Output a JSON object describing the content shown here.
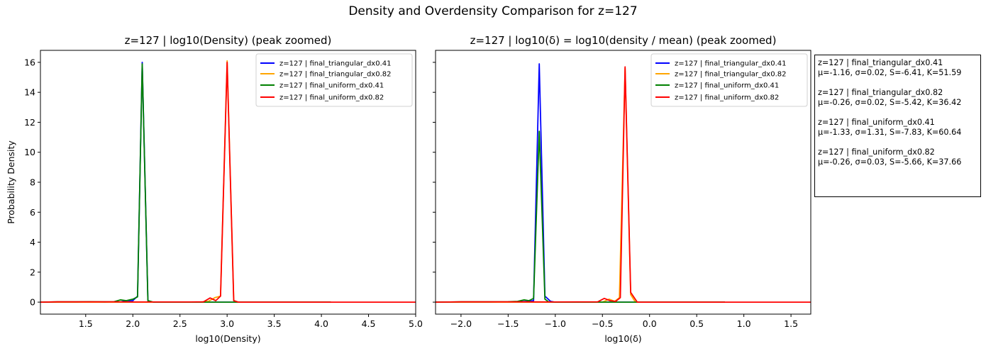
{
  "suptitle": "Density and Overdensity Comparison for z=127",
  "colors": {
    "final_triangular_dx0.41": "#0000ff",
    "final_triangular_dx0.82": "#ffa500",
    "final_uniform_dx0.41": "#008000",
    "final_uniform_dx0.82": "#ff0000"
  },
  "stats": [
    {
      "name": "z=127 | final_triangular_dx0.41",
      "line": "μ=-1.16, σ=0.02, S=-6.41, K=51.59"
    },
    {
      "name": "z=127 | final_triangular_dx0.82",
      "line": "μ=-0.26, σ=0.02, S=-5.42, K=36.42"
    },
    {
      "name": "z=127 | final_uniform_dx0.41",
      "line": "μ=-1.33, σ=1.31, S=-7.83, K=60.64"
    },
    {
      "name": "z=127 | final_uniform_dx0.82",
      "line": "μ=-0.26, σ=0.03, S=-5.66, K=37.66"
    }
  ],
  "chart_data": [
    {
      "type": "line",
      "title": "z=127 | log10(Density) (peak zoomed)",
      "xlabel": "log10(Density)",
      "ylabel": "Probability Density",
      "xlim": [
        1.02,
        5.0
      ],
      "ylim": [
        -0.8,
        16.8
      ],
      "xticks": [
        1.5,
        2.0,
        2.5,
        3.0,
        3.5,
        4.0,
        4.5,
        5.0
      ],
      "xtick_labels": [
        "1.5",
        "2.0",
        "2.5",
        "3.0",
        "3.5",
        "4.0",
        "4.5",
        "5.0"
      ],
      "yticks": [
        0,
        2,
        4,
        6,
        8,
        10,
        12,
        14,
        16
      ],
      "ytick_labels": [
        "0",
        "2",
        "4",
        "6",
        "8",
        "10",
        "12",
        "14",
        "16"
      ],
      "legend_position": "top-right",
      "series": [
        {
          "name": "z=127 | final_triangular_dx0.41",
          "color_key": "final_triangular_dx0.41",
          "x": [
            1.02,
            1.86,
            1.93,
            2.0,
            2.05,
            2.1,
            2.16,
            2.2,
            2.5,
            4.1
          ],
          "y": [
            0,
            0,
            0.1,
            0.1,
            0.4,
            16.0,
            0.1,
            0,
            0,
            0
          ]
        },
        {
          "name": "z=127 | final_triangular_dx0.82",
          "color_key": "final_triangular_dx0.82",
          "x": [
            1.02,
            2.7,
            2.8,
            2.87,
            2.93,
            3.0,
            3.07,
            3.12,
            3.5,
            4.1
          ],
          "y": [
            0,
            0,
            0.05,
            0.3,
            0.4,
            16.1,
            0.1,
            0,
            0,
            0
          ]
        },
        {
          "name": "z=127 | final_uniform_dx0.41",
          "color_key": "final_uniform_dx0.41",
          "x": [
            1.02,
            1.2,
            1.4,
            1.55,
            1.7,
            1.8,
            1.87,
            1.93,
            2.0,
            2.05,
            2.1,
            2.16,
            2.22,
            2.5,
            4.1
          ],
          "y": [
            0,
            0.02,
            0.02,
            0.03,
            0.02,
            0.03,
            0.15,
            0.1,
            0.2,
            0.35,
            15.9,
            0.1,
            0,
            0,
            0
          ]
        },
        {
          "name": "z=127 | final_uniform_dx0.82",
          "color_key": "final_uniform_dx0.82",
          "x": [
            1.02,
            1.2,
            1.5,
            1.8,
            2.0,
            2.6,
            2.75,
            2.82,
            2.88,
            2.93,
            3.0,
            3.07,
            3.12,
            3.5,
            4.1,
            5.0
          ],
          "y": [
            0,
            0.02,
            0.02,
            0.02,
            0.01,
            0.01,
            0.02,
            0.28,
            0.1,
            0.4,
            16.0,
            0.1,
            0,
            0,
            0,
            0
          ]
        }
      ]
    },
    {
      "type": "line",
      "title": "z=127 | log10(δ) = log10(density / mean) (peak zoomed)",
      "xlabel": "log10(δ)",
      "ylabel": "",
      "xlim": [
        -2.27,
        1.71
      ],
      "ylim": [
        -0.8,
        16.8
      ],
      "xticks": [
        -2.0,
        -1.5,
        -1.0,
        -0.5,
        0.0,
        0.5,
        1.0,
        1.5
      ],
      "xtick_labels": [
        "−2.0",
        "−1.5",
        "−1.0",
        "−0.5",
        "0.0",
        "0.5",
        "1.0",
        "1.5"
      ],
      "yticks": [
        0,
        2,
        4,
        6,
        8,
        10,
        12,
        14,
        16
      ],
      "ytick_labels": [
        "",
        "",
        "",
        "",
        "",
        "",
        "",
        "",
        ""
      ],
      "legend_position": "top-right",
      "series": [
        {
          "name": "z=127 | final_triangular_dx0.41",
          "color_key": "final_triangular_dx0.41",
          "x": [
            -2.27,
            -1.5,
            -1.3,
            -1.23,
            -1.17,
            -1.11,
            -1.05,
            -1.0,
            -0.5,
            0.8
          ],
          "y": [
            0,
            0,
            0.05,
            0.1,
            15.9,
            0.4,
            0.05,
            0,
            0,
            0
          ]
        },
        {
          "name": "z=127 | final_triangular_dx0.82",
          "color_key": "final_triangular_dx0.82",
          "x": [
            -2.27,
            -0.5,
            -0.43,
            -0.37,
            -0.32,
            -0.26,
            -0.2,
            -0.15,
            0.5,
            0.8
          ],
          "y": [
            0,
            0,
            0.2,
            0.05,
            0.3,
            15.6,
            0.5,
            0,
            0,
            0
          ]
        },
        {
          "name": "z=127 | final_uniform_dx0.41",
          "color_key": "final_uniform_dx0.41",
          "x": [
            -2.27,
            -2.0,
            -1.7,
            -1.5,
            -1.4,
            -1.33,
            -1.28,
            -1.23,
            -1.17,
            -1.11,
            -1.07,
            -1.0,
            0.8
          ],
          "y": [
            0,
            0.02,
            0.02,
            0.03,
            0.05,
            0.15,
            0.1,
            0.25,
            11.4,
            0.2,
            0.02,
            0,
            0
          ]
        },
        {
          "name": "z=127 | final_uniform_dx0.82",
          "color_key": "final_uniform_dx0.82",
          "x": [
            -2.27,
            -2.0,
            -1.7,
            -1.4,
            -1.0,
            -0.55,
            -0.48,
            -0.42,
            -0.36,
            -0.31,
            -0.26,
            -0.2,
            -0.13,
            0.5,
            1.71
          ],
          "y": [
            0,
            0.02,
            0.02,
            0.02,
            0.01,
            0.02,
            0.25,
            0.1,
            0.05,
            0.3,
            15.7,
            0.65,
            0,
            0,
            0
          ]
        }
      ]
    }
  ]
}
